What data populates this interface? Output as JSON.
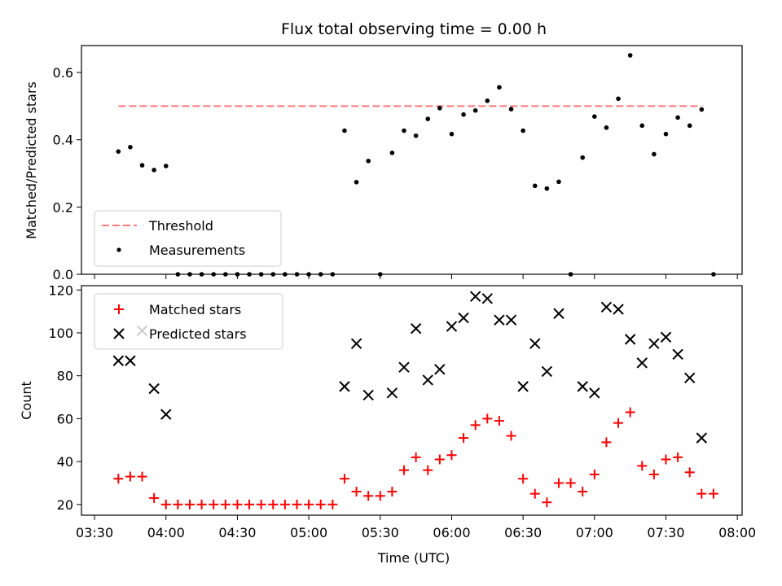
{
  "chart_data": [
    {
      "type": "scatter",
      "title": "Flux total observing time = 0.00 h",
      "xlabel": "",
      "ylabel": "Matched/Predicted stars",
      "ylim": [
        0,
        0.68
      ],
      "yticks": [
        "0.0",
        "0.2",
        "0.4",
        "0.6"
      ],
      "legend_placement": "lower-left",
      "series": [
        {
          "name": "Threshold",
          "kind": "dashed-line",
          "color": "#ff7777",
          "x": [
            "03:40",
            "07:45"
          ],
          "y": [
            0.5,
            0.5
          ]
        },
        {
          "name": "Measurements",
          "kind": "points",
          "color": "#000000",
          "x": [
            "03:40",
            "03:45",
            "03:50",
            "03:55",
            "04:00",
            "04:05",
            "04:10",
            "04:15",
            "04:20",
            "04:25",
            "04:30",
            "04:35",
            "04:40",
            "04:45",
            "04:50",
            "04:55",
            "05:00",
            "05:05",
            "05:10",
            "05:15",
            "05:20",
            "05:25",
            "05:30",
            "05:35",
            "05:40",
            "05:45",
            "05:50",
            "05:55",
            "06:00",
            "06:05",
            "06:10",
            "06:15",
            "06:20",
            "06:25",
            "06:30",
            "06:35",
            "06:40",
            "06:45",
            "06:50",
            "06:55",
            "07:00",
            "07:05",
            "07:10",
            "07:15",
            "07:20",
            "07:25",
            "07:30",
            "07:35",
            "07:40",
            "07:45",
            "07:50"
          ],
          "y": [
            0.365,
            0.378,
            0.324,
            0.31,
            0.322,
            0.0,
            0.0,
            0.0,
            0.0,
            0.0,
            0.0,
            0.0,
            0.0,
            0.0,
            0.0,
            0.0,
            0.0,
            0.0,
            0.0,
            0.427,
            0.274,
            0.337,
            0.0,
            0.361,
            0.427,
            0.412,
            0.462,
            0.494,
            0.417,
            0.475,
            0.487,
            0.516,
            0.556,
            0.491,
            0.427,
            0.263,
            0.255,
            0.275,
            0.0,
            0.347,
            0.469,
            0.436,
            0.522,
            0.651,
            0.442,
            0.357,
            0.417,
            0.466,
            0.442,
            0.49,
            0.0
          ]
        }
      ]
    },
    {
      "type": "scatter",
      "title": "",
      "xlabel": "Time (UTC)",
      "ylabel": "Count",
      "ylim": [
        15,
        122
      ],
      "yticks": [
        "20",
        "40",
        "60",
        "80",
        "100",
        "120"
      ],
      "xticks": [
        "03:30",
        "04:00",
        "04:30",
        "05:00",
        "05:30",
        "06:00",
        "06:30",
        "07:00",
        "07:30",
        "08:00"
      ],
      "legend_placement": "upper-left",
      "series": [
        {
          "name": "Matched stars",
          "marker": "plus",
          "color": "#ff0000",
          "x": [
            "03:40",
            "03:45",
            "03:50",
            "03:55",
            "04:00",
            "04:05",
            "04:10",
            "04:15",
            "04:20",
            "04:25",
            "04:30",
            "04:35",
            "04:40",
            "04:45",
            "04:50",
            "04:55",
            "05:00",
            "05:05",
            "05:10",
            "05:15",
            "05:20",
            "05:25",
            "05:30",
            "05:35",
            "05:40",
            "05:45",
            "05:50",
            "05:55",
            "06:00",
            "06:05",
            "06:10",
            "06:15",
            "06:20",
            "06:25",
            "06:30",
            "06:35",
            "06:40",
            "06:45",
            "06:50",
            "06:55",
            "07:00",
            "07:05",
            "07:10",
            "07:15",
            "07:20",
            "07:25",
            "07:30",
            "07:35",
            "07:40",
            "07:45",
            "07:50"
          ],
          "y": [
            32,
            33,
            33,
            23,
            20,
            20,
            20,
            20,
            20,
            20,
            20,
            20,
            20,
            20,
            20,
            20,
            20,
            20,
            20,
            32,
            26,
            24,
            24,
            26,
            36,
            42,
            36,
            41,
            43,
            51,
            57,
            60,
            59,
            52,
            32,
            25,
            21,
            30,
            30,
            26,
            34,
            49,
            58,
            63,
            38,
            34,
            41,
            42,
            35,
            25,
            25
          ]
        },
        {
          "name": "Predicted stars",
          "marker": "x",
          "color": "#000000",
          "x": [
            "03:40",
            "03:45",
            "03:50",
            "03:55",
            "04:00",
            "05:15",
            "05:20",
            "05:25",
            "05:35",
            "05:40",
            "05:45",
            "05:50",
            "05:55",
            "06:00",
            "06:05",
            "06:10",
            "06:15",
            "06:20",
            "06:25",
            "06:30",
            "06:35",
            "06:40",
            "06:45",
            "06:55",
            "07:00",
            "07:05",
            "07:10",
            "07:15",
            "07:20",
            "07:25",
            "07:30",
            "07:35",
            "07:40",
            "07:45"
          ],
          "y": [
            87,
            87,
            101,
            74,
            62,
            75,
            95,
            71,
            72,
            84,
            102,
            78,
            83,
            103,
            107,
            117,
            116,
            106,
            106,
            75,
            95,
            82,
            109,
            75,
            72,
            112,
            111,
            97,
            86,
            95,
            98,
            90,
            79,
            51
          ]
        }
      ]
    }
  ]
}
